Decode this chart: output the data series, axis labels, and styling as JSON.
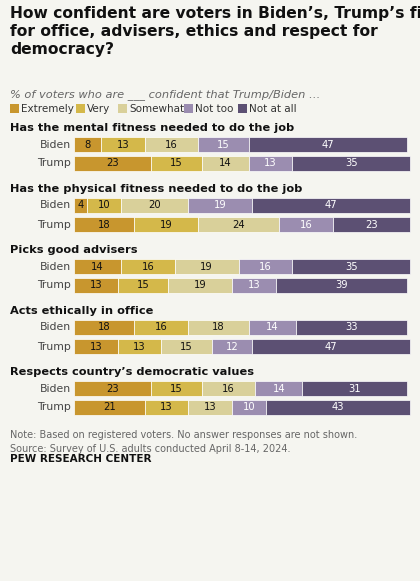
{
  "title": "How confident are voters in Biden’s, Trump’s fitness\nfor office, advisers, ethics and respect for\ndemocracy?",
  "subtitle": "% of voters who are ___ confident that Trump/Biden …",
  "categories": [
    "Has the mental fitness needed to do the job",
    "Has the physical fitness needed to do the job",
    "Picks good advisers",
    "Acts ethically in office",
    "Respects country’s democratic values"
  ],
  "legend_labels": [
    "Extremely",
    "Very",
    "Somewhat",
    "Not too",
    "Not at all"
  ],
  "colors": [
    "#C8962E",
    "#D4B84A",
    "#D9D09A",
    "#9B8DB0",
    "#5C5073"
  ],
  "data": [
    {
      "category": "Has the mental fitness needed to do the job",
      "Biden": [
        8,
        13,
        16,
        15,
        47
      ],
      "Trump": [
        23,
        15,
        14,
        13,
        35
      ]
    },
    {
      "category": "Has the physical fitness needed to do the job",
      "Biden": [
        4,
        10,
        20,
        19,
        47
      ],
      "Trump": [
        18,
        19,
        24,
        16,
        23
      ]
    },
    {
      "category": "Picks good advisers",
      "Biden": [
        14,
        16,
        19,
        16,
        35
      ],
      "Trump": [
        13,
        15,
        19,
        13,
        39
      ]
    },
    {
      "category": "Acts ethically in office",
      "Biden": [
        18,
        16,
        18,
        14,
        33
      ],
      "Trump": [
        13,
        13,
        15,
        12,
        47
      ]
    },
    {
      "category": "Respects country’s democratic values",
      "Biden": [
        23,
        15,
        16,
        14,
        31
      ],
      "Trump": [
        21,
        13,
        13,
        10,
        43
      ]
    }
  ],
  "note": "Note: Based on registered voters. No answer responses are not shown.\nSource: Survey of U.S. adults conducted April 8-14, 2024.",
  "source_bold": "PEW RESEARCH CENTER",
  "bg_color": "#f5f5f0",
  "text_color": "#111111",
  "label_color": "#444444",
  "note_color": "#666666"
}
